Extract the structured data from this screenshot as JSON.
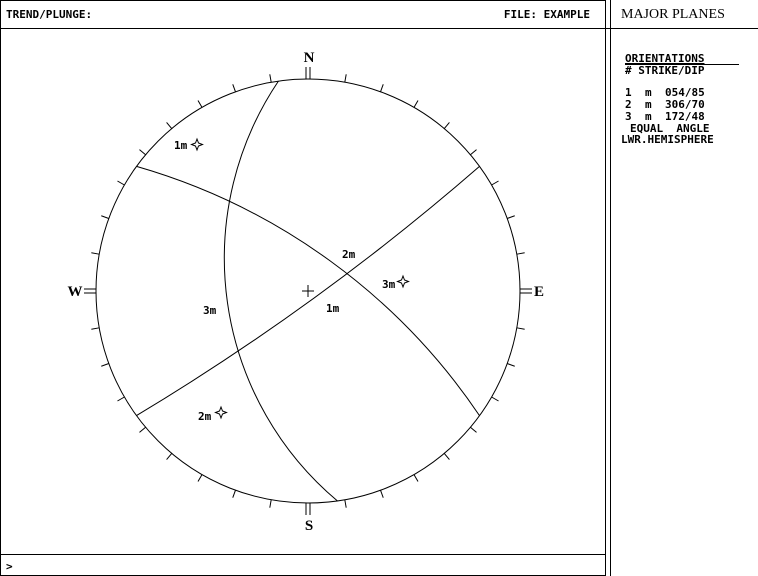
{
  "header": {
    "left": "TREND/PLUNGE:",
    "right": "FILE: EXAMPLE"
  },
  "prompt": ">",
  "compass": {
    "n": "N",
    "e": "E",
    "s": "S",
    "w": "W"
  },
  "plot_labels": [
    "1m",
    "2m",
    "3m",
    "1m",
    "3m",
    "2m"
  ],
  "sidebar": {
    "title": "MAJOR PLANES",
    "heading": "ORIENTATIONS",
    "subheading": "# STRIKE/DIP",
    "planes": [
      {
        "number": "1",
        "type": "m",
        "orientation": "054/85"
      },
      {
        "number": "2",
        "type": "m",
        "orientation": "306/70"
      },
      {
        "number": "3",
        "type": "m",
        "orientation": "172/48"
      }
    ],
    "projection": "EQUAL  ANGLE",
    "hemisphere": "LWR.HEMISPHERE"
  }
}
